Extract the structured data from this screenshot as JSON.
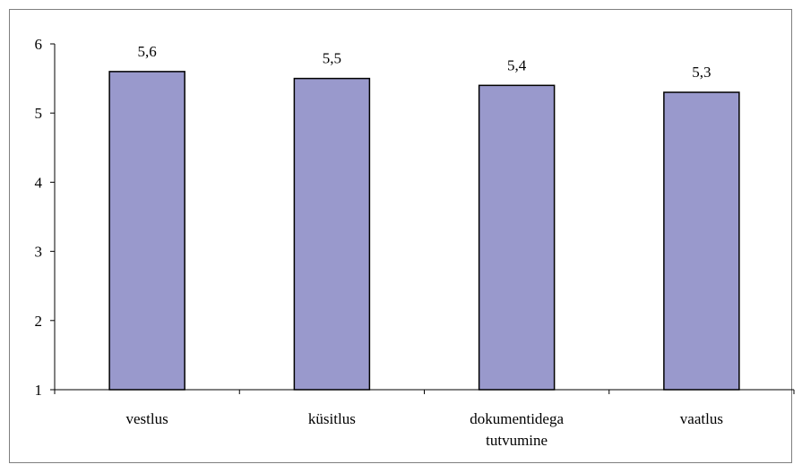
{
  "chart_data": {
    "type": "bar",
    "categories": [
      [
        "vestlus"
      ],
      [
        "küsitlus"
      ],
      [
        "dokumentidega",
        "tutvumine"
      ],
      [
        "vaatlus"
      ]
    ],
    "values": [
      5.6,
      5.5,
      5.4,
      5.3
    ],
    "data_labels": [
      "5,6",
      "5,5",
      "5,4",
      "5,3"
    ],
    "ylim": [
      1,
      6
    ],
    "yticks": [
      1,
      2,
      3,
      4,
      5,
      6
    ],
    "ytick_labels": [
      "1",
      "2",
      "3",
      "4",
      "5",
      "6"
    ],
    "title": "",
    "xlabel": "",
    "ylabel": "",
    "grid": false,
    "legend": "none",
    "bar_color": "#9999cc",
    "bar_edge_color": "#000000"
  }
}
